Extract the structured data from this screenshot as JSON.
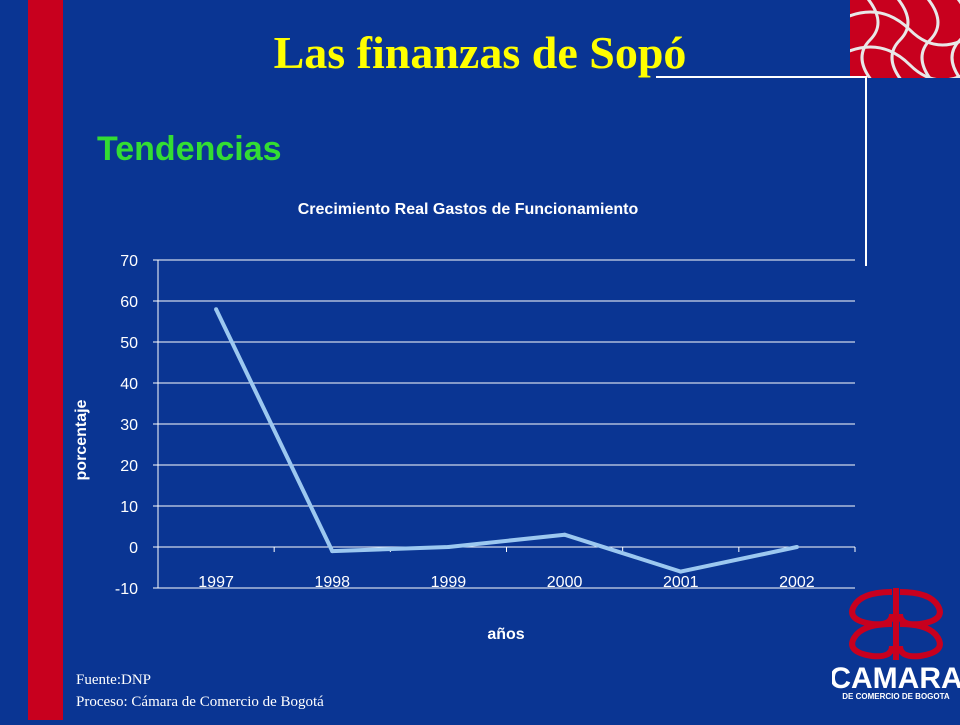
{
  "slide": {
    "title": "Las finanzas de Sopó",
    "subtitle": "Tendencias",
    "source_line": "Fuente:DNP",
    "process_line": "Proceso: Cámara de Comercio de Bogotá"
  },
  "logo": {
    "name": "CAMARA",
    "tagline": "DE COMERCIO DE BOGOTA"
  },
  "colors": {
    "background": "#0a3593",
    "title": "#ffff00",
    "subtitle": "#33dd33",
    "accent_red": "#c8001e",
    "line": "#9cc8f0",
    "text": "#ffffff"
  },
  "chart_data": {
    "type": "line",
    "title": "Crecimiento Real Gastos de Funcionamiento",
    "xlabel": "años",
    "ylabel": "porcentaje",
    "categories": [
      "1997",
      "1998",
      "1999",
      "2000",
      "2001",
      "2002"
    ],
    "series": [
      {
        "values": [
          58,
          -1,
          0,
          3,
          -6,
          0
        ]
      }
    ],
    "ylim": [
      -10,
      70
    ],
    "yticks": [
      -10,
      0,
      10,
      20,
      30,
      40,
      50,
      60,
      70
    ],
    "grid": true,
    "legend": "none"
  }
}
